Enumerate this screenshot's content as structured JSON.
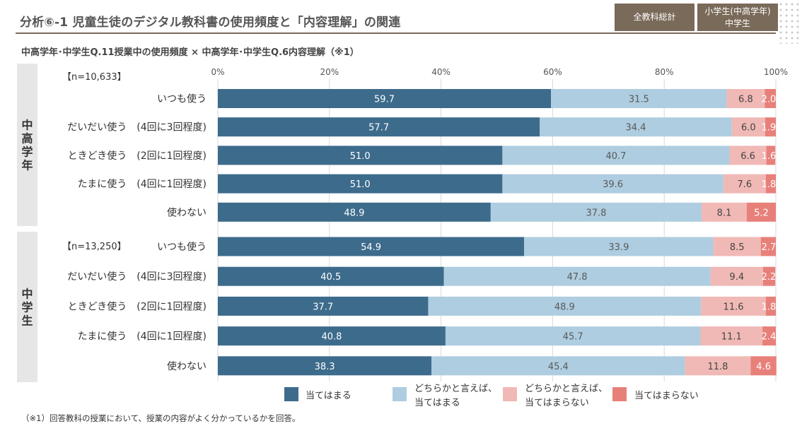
{
  "header": {
    "title": "分析⑥-1  児童生徒のデジタル教科書の使用頻度と「内容理解」の関連",
    "tag1": "全教科総計",
    "tag2_line1": "小学生(中高学年)",
    "tag2_line2": "中学生"
  },
  "subtitle": "中高学年･中学生Q.11授業中の使用頻度  ×  中高学年･中学生Q.6内容理解（※1）",
  "footnote": "（※1）回答教科の授業において、授業の内容がよく分かっているかを回答。",
  "chart_data": {
    "type": "bar",
    "orientation": "horizontal",
    "stacked": true,
    "percent": true,
    "xlim": [
      0,
      100
    ],
    "x_ticks": [
      "0%",
      "20%",
      "40%",
      "60%",
      "80%",
      "100%"
    ],
    "colors": [
      "#3d6b8c",
      "#aecde0",
      "#f0b9b6",
      "#e8807a"
    ],
    "legend": {
      "position": "bottom",
      "entries": [
        [
          "当てはまる"
        ],
        [
          "どちらかと言えば、",
          "当てはまる"
        ],
        [
          "どちらかと言えば、",
          "当てはまらない"
        ],
        [
          "当てはまらない"
        ]
      ]
    },
    "groups": [
      {
        "name": "中高学年",
        "n": "【n=10,633】",
        "categories": [
          "いつも使う",
          "だいだい使う　(4回に3回程度)",
          "ときどき使う　(2回に1回程度)",
          "たまに使う　(4回に1回程度)",
          "使わない"
        ],
        "values": [
          [
            59.7,
            31.5,
            6.8,
            2.0
          ],
          [
            57.7,
            34.4,
            6.0,
            1.9
          ],
          [
            51.0,
            40.7,
            6.6,
            1.6
          ],
          [
            51.0,
            39.6,
            7.6,
            1.8
          ],
          [
            48.9,
            37.8,
            8.1,
            5.2
          ]
        ]
      },
      {
        "name": "中学生",
        "n": "【n=13,250】",
        "categories": [
          "いつも使う",
          "だいだい使う　(4回に3回程度)",
          "ときどき使う　(2回に1回程度)",
          "たまに使う　(4回に1回程度)",
          "使わない"
        ],
        "values": [
          [
            54.9,
            33.9,
            8.5,
            2.7
          ],
          [
            40.5,
            47.8,
            9.4,
            2.2
          ],
          [
            37.7,
            48.9,
            11.6,
            1.8
          ],
          [
            40.8,
            45.7,
            11.1,
            2.4
          ],
          [
            38.3,
            45.4,
            11.8,
            4.6
          ]
        ]
      }
    ]
  }
}
